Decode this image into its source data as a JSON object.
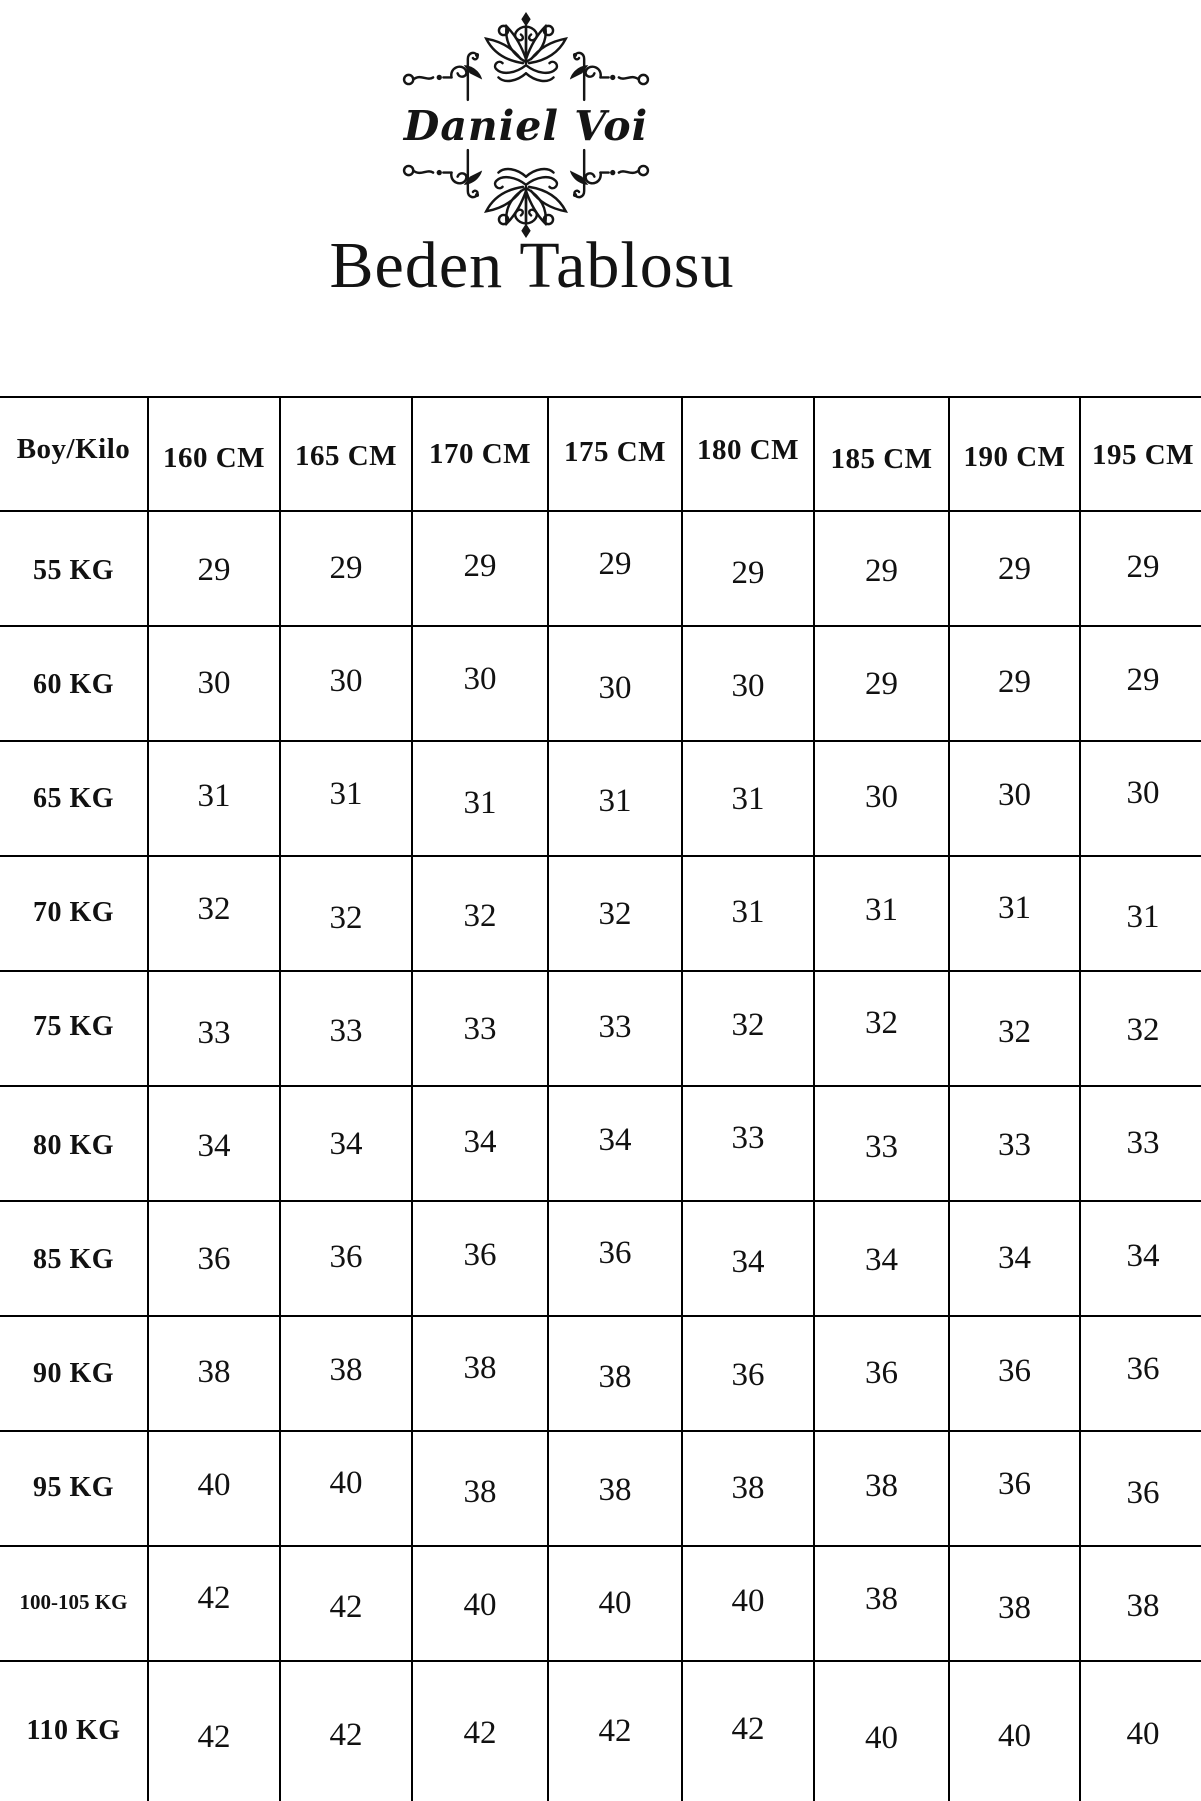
{
  "logo": {
    "brand": "Daniel Voi",
    "ornament": "decorative-flourish"
  },
  "page": {
    "title": "Beden Tablosu"
  },
  "table": {
    "header": [
      "Boy/Kilo",
      "160 CM",
      "165 CM",
      "170 CM",
      "175 CM",
      "180 CM",
      "185 CM",
      "190 CM",
      "195 CM"
    ],
    "rows": [
      {
        "label": "55 KG",
        "values": [
          "29",
          "29",
          "29",
          "29",
          "29",
          "29",
          "29",
          "29"
        ]
      },
      {
        "label": "60 KG",
        "values": [
          "30",
          "30",
          "30",
          "30",
          "30",
          "29",
          "29",
          "29"
        ]
      },
      {
        "label": "65 KG",
        "values": [
          "31",
          "31",
          "31",
          "31",
          "31",
          "30",
          "30",
          "30"
        ]
      },
      {
        "label": "70 KG",
        "values": [
          "32",
          "32",
          "32",
          "32",
          "31",
          "31",
          "31",
          "31"
        ]
      },
      {
        "label": "75 KG",
        "values": [
          "33",
          "33",
          "33",
          "33",
          "32",
          "32",
          "32",
          "32"
        ]
      },
      {
        "label": "80 KG",
        "values": [
          "34",
          "34",
          "34",
          "34",
          "33",
          "33",
          "33",
          "33"
        ]
      },
      {
        "label": "85 KG",
        "values": [
          "36",
          "36",
          "36",
          "36",
          "34",
          "34",
          "34",
          "34"
        ]
      },
      {
        "label": "90 KG",
        "values": [
          "38",
          "38",
          "38",
          "38",
          "36",
          "36",
          "36",
          "36"
        ]
      },
      {
        "label": "95 KG",
        "values": [
          "40",
          "40",
          "38",
          "38",
          "38",
          "38",
          "36",
          "36"
        ]
      },
      {
        "label": "100-105 KG",
        "values": [
          "42",
          "42",
          "40",
          "40",
          "40",
          "38",
          "38",
          "38"
        ]
      },
      {
        "label": "110 KG",
        "values": [
          "42",
          "42",
          "42",
          "42",
          "42",
          "40",
          "40",
          "40"
        ]
      }
    ]
  },
  "colors": {
    "ink": "#141414",
    "background": "#ffffff",
    "table_border": "#000000"
  }
}
